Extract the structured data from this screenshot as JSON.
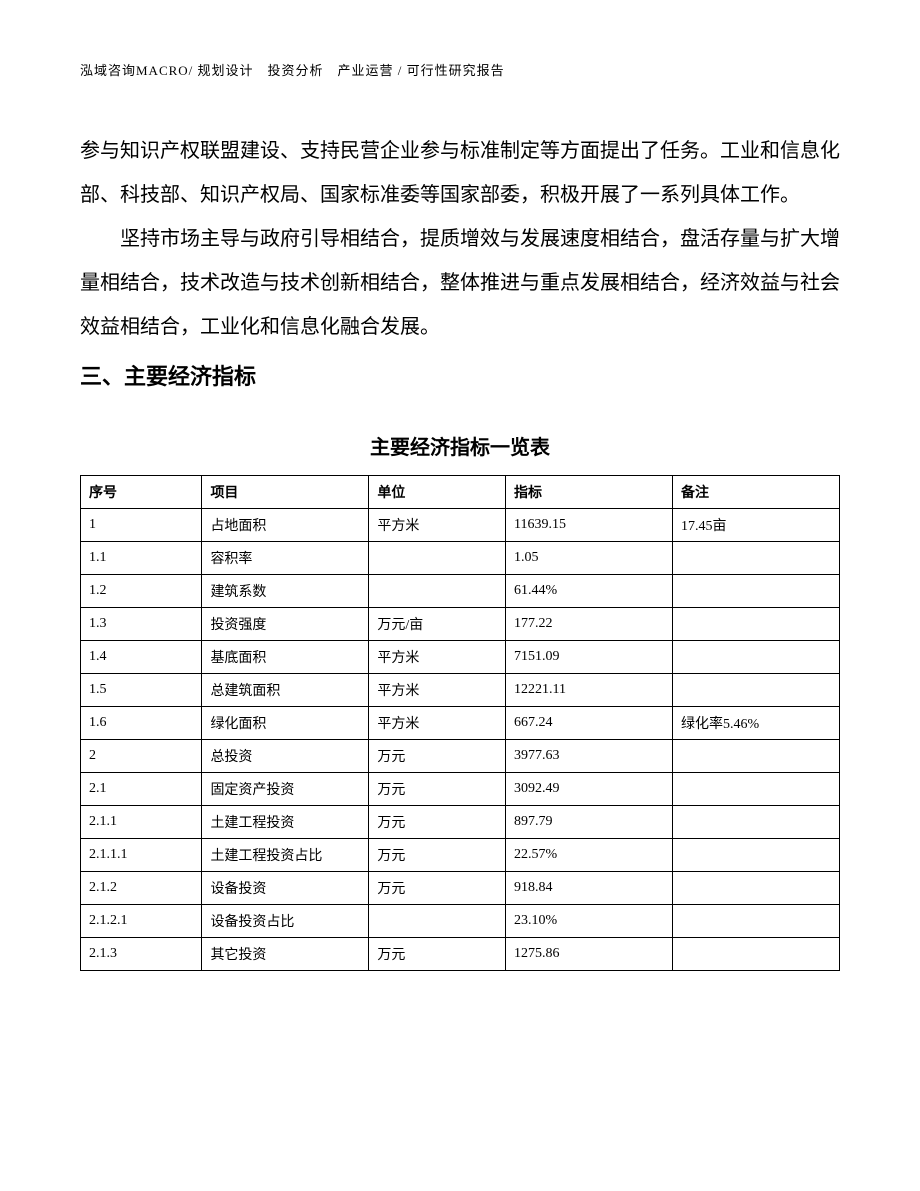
{
  "header_text": "泓域咨询MACRO/ 规划设计　投资分析　产业运营 / 可行性研究报告",
  "paragraph1": "参与知识产权联盟建设、支持民营企业参与标准制定等方面提出了任务。工业和信息化部、科技部、知识产权局、国家标准委等国家部委，积极开展了一系列具体工作。",
  "paragraph2": "坚持市场主导与政府引导相结合，提质增效与发展速度相结合，盘活存量与扩大增量相结合，技术改造与技术创新相结合，整体推进与重点发展相结合，经济效益与社会效益相结合，工业化和信息化融合发展。",
  "section_heading": "三、主要经济指标",
  "table_title": "主要经济指标一览表",
  "table": {
    "type": "table",
    "border_color": "#000000",
    "background_color": "#ffffff",
    "font_size": 14,
    "header_font_weight": "bold",
    "columns": [
      "序号",
      "项目",
      "单位",
      "指标",
      "备注"
    ],
    "column_widths": [
      "16%",
      "22%",
      "18%",
      "22%",
      "22%"
    ],
    "rows": [
      [
        "1",
        "占地面积",
        "平方米",
        "11639.15",
        "17.45亩"
      ],
      [
        "1.1",
        "容积率",
        "",
        "1.05",
        ""
      ],
      [
        "1.2",
        "建筑系数",
        "",
        "61.44%",
        ""
      ],
      [
        "1.3",
        "投资强度",
        "万元/亩",
        "177.22",
        ""
      ],
      [
        "1.4",
        "基底面积",
        "平方米",
        "7151.09",
        ""
      ],
      [
        "1.5",
        "总建筑面积",
        "平方米",
        "12221.11",
        ""
      ],
      [
        "1.6",
        "绿化面积",
        "平方米",
        "667.24",
        "绿化率5.46%"
      ],
      [
        "2",
        "总投资",
        "万元",
        "3977.63",
        ""
      ],
      [
        "2.1",
        "固定资产投资",
        "万元",
        "3092.49",
        ""
      ],
      [
        "2.1.1",
        "土建工程投资",
        "万元",
        "897.79",
        ""
      ],
      [
        "2.1.1.1",
        "土建工程投资占比",
        "万元",
        "22.57%",
        ""
      ],
      [
        "2.1.2",
        "设备投资",
        "万元",
        "918.84",
        ""
      ],
      [
        "2.1.2.1",
        "设备投资占比",
        "",
        "23.10%",
        ""
      ],
      [
        "2.1.3",
        "其它投资",
        "万元",
        "1275.86",
        ""
      ]
    ]
  }
}
